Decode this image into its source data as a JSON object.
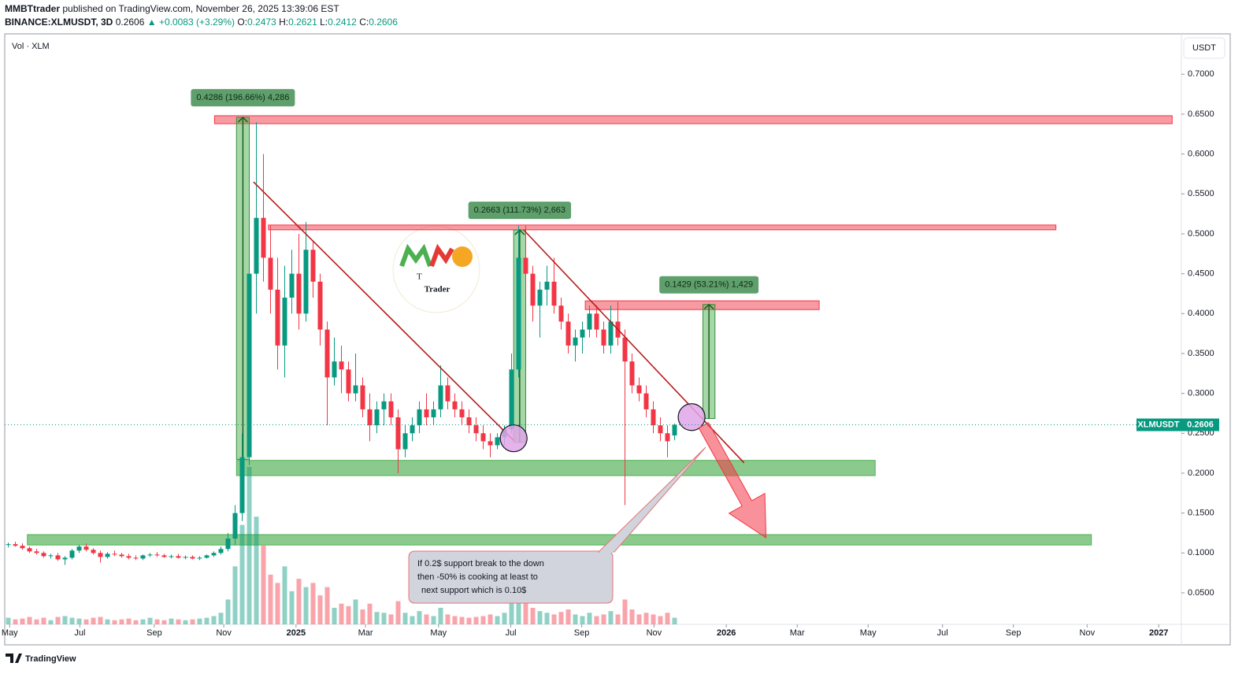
{
  "header": {
    "author": "MMBTtrader",
    "published": "published on TradingView.com, November 26, 2025 13:39:06 EST",
    "symbol": "BINANCE:XLMUSDT, 3D",
    "change": "▲ +0.0083 (+3.29%)",
    "ohlc_labels": [
      "O:",
      "H:",
      "L:",
      "C:"
    ],
    "volume_label": "Vol · XLM",
    "currency": "USDT",
    "ticker": "XLMUSDT",
    "brand": "TradingView"
  },
  "chart_data": {
    "type": "candlestick",
    "up_color": "#089981",
    "down_color": "#f23645",
    "grid": false,
    "categories": [
      null,
      null,
      null,
      null,
      null,
      null,
      null,
      null,
      null,
      null,
      null,
      null,
      null,
      null,
      null,
      null,
      null,
      null,
      null,
      null,
      null,
      null,
      null,
      null,
      null,
      null,
      null,
      null,
      null,
      null,
      null,
      null,
      null,
      null,
      null,
      null,
      null,
      null,
      null,
      null,
      null,
      null,
      null,
      null,
      null,
      null,
      null,
      null,
      null,
      null,
      null,
      null,
      null,
      null,
      null,
      null,
      null,
      null,
      null,
      null,
      null,
      null,
      null,
      null,
      null,
      null,
      null,
      null,
      null,
      null,
      null,
      null,
      null,
      null,
      null,
      null,
      null,
      null,
      null,
      null,
      null,
      null,
      null,
      null,
      null,
      null,
      null,
      null,
      null,
      null,
      null,
      null,
      null,
      null,
      null
    ],
    "open": [
      0.11,
      0.111,
      0.109,
      0.106,
      0.102,
      0.1,
      0.096,
      0.097,
      0.092,
      0.094,
      0.103,
      0.108,
      0.104,
      0.1,
      0.095,
      0.099,
      0.098,
      0.096,
      0.094,
      0.093,
      0.097,
      0.098,
      0.097,
      0.095,
      0.096,
      0.094,
      0.095,
      0.093,
      0.094,
      0.097,
      0.1,
      0.105,
      0.118,
      0.15,
      0.22,
      0.45,
      0.52,
      0.47,
      0.43,
      0.36,
      0.42,
      0.45,
      0.4,
      0.48,
      0.44,
      0.38,
      0.32,
      0.34,
      0.33,
      0.3,
      0.31,
      0.28,
      0.26,
      0.28,
      0.29,
      0.27,
      0.23,
      0.25,
      0.26,
      0.28,
      0.27,
      0.28,
      0.31,
      0.29,
      0.28,
      0.27,
      0.26,
      0.25,
      0.24,
      0.235,
      0.245,
      0.255,
      0.33,
      0.47,
      0.45,
      0.41,
      0.43,
      0.44,
      0.41,
      0.39,
      0.36,
      0.37,
      0.38,
      0.4,
      0.38,
      0.36,
      0.39,
      0.37,
      0.34,
      0.31,
      0.3,
      0.28,
      0.26,
      0.25,
      0.2473
    ],
    "high": [
      0.113,
      0.114,
      0.112,
      0.108,
      0.105,
      0.102,
      0.099,
      0.1,
      0.096,
      0.105,
      0.11,
      0.112,
      0.106,
      0.103,
      0.101,
      0.103,
      0.1,
      0.099,
      0.097,
      0.098,
      0.1,
      0.101,
      0.099,
      0.098,
      0.099,
      0.097,
      0.097,
      0.096,
      0.098,
      0.102,
      0.108,
      0.125,
      0.16,
      0.25,
      0.46,
      0.64,
      0.6,
      0.51,
      0.47,
      0.46,
      0.48,
      0.5,
      0.515,
      0.49,
      0.45,
      0.39,
      0.37,
      0.36,
      0.34,
      0.35,
      0.32,
      0.3,
      0.29,
      0.3,
      0.3,
      0.28,
      0.26,
      0.27,
      0.29,
      0.3,
      0.29,
      0.335,
      0.32,
      0.3,
      0.29,
      0.28,
      0.27,
      0.26,
      0.25,
      0.25,
      0.26,
      0.35,
      0.51,
      0.51,
      0.46,
      0.44,
      0.46,
      0.47,
      0.42,
      0.4,
      0.38,
      0.39,
      0.41,
      0.41,
      0.39,
      0.41,
      0.415,
      0.38,
      0.35,
      0.32,
      0.31,
      0.29,
      0.27,
      0.26,
      0.2621
    ],
    "low": [
      0.107,
      0.108,
      0.104,
      0.1,
      0.098,
      0.094,
      0.093,
      0.09,
      0.085,
      0.092,
      0.1,
      0.102,
      0.098,
      0.088,
      0.093,
      0.096,
      0.094,
      0.092,
      0.091,
      0.091,
      0.095,
      0.095,
      0.094,
      0.093,
      0.093,
      0.092,
      0.092,
      0.091,
      0.093,
      0.095,
      0.098,
      0.102,
      0.11,
      0.14,
      0.21,
      0.4,
      0.44,
      0.4,
      0.33,
      0.32,
      0.4,
      0.38,
      0.39,
      0.42,
      0.36,
      0.26,
      0.31,
      0.3,
      0.29,
      0.29,
      0.27,
      0.24,
      0.25,
      0.26,
      0.26,
      0.2,
      0.22,
      0.24,
      0.25,
      0.26,
      0.26,
      0.27,
      0.28,
      0.27,
      0.26,
      0.25,
      0.24,
      0.23,
      0.22,
      0.23,
      0.235,
      0.25,
      0.32,
      0.42,
      0.39,
      0.37,
      0.41,
      0.4,
      0.38,
      0.35,
      0.34,
      0.35,
      0.37,
      0.37,
      0.35,
      0.35,
      0.36,
      0.16,
      0.3,
      0.29,
      0.27,
      0.25,
      0.24,
      0.22,
      0.2412
    ],
    "close": [
      0.111,
      0.109,
      0.106,
      0.102,
      0.1,
      0.096,
      0.097,
      0.092,
      0.094,
      0.103,
      0.108,
      0.104,
      0.1,
      0.095,
      0.099,
      0.098,
      0.096,
      0.094,
      0.093,
      0.097,
      0.098,
      0.097,
      0.095,
      0.096,
      0.094,
      0.095,
      0.093,
      0.094,
      0.097,
      0.1,
      0.105,
      0.118,
      0.15,
      0.22,
      0.45,
      0.52,
      0.47,
      0.43,
      0.36,
      0.42,
      0.45,
      0.4,
      0.48,
      0.44,
      0.38,
      0.32,
      0.34,
      0.33,
      0.3,
      0.31,
      0.28,
      0.26,
      0.28,
      0.29,
      0.27,
      0.23,
      0.25,
      0.26,
      0.28,
      0.27,
      0.28,
      0.31,
      0.29,
      0.28,
      0.27,
      0.26,
      0.25,
      0.24,
      0.235,
      0.245,
      0.255,
      0.33,
      0.47,
      0.45,
      0.41,
      0.43,
      0.44,
      0.41,
      0.39,
      0.36,
      0.37,
      0.38,
      0.4,
      0.38,
      0.36,
      0.39,
      0.37,
      0.34,
      0.31,
      0.3,
      0.28,
      0.26,
      0.25,
      0.24,
      0.2606
    ],
    "volume": [
      8,
      6,
      7,
      9,
      6,
      8,
      5,
      9,
      10,
      8,
      7,
      6,
      8,
      9,
      6,
      5,
      6,
      7,
      5,
      6,
      8,
      6,
      5,
      7,
      6,
      5,
      6,
      7,
      8,
      10,
      14,
      30,
      70,
      120,
      190,
      130,
      95,
      60,
      50,
      70,
      40,
      55,
      45,
      50,
      35,
      45,
      20,
      25,
      22,
      30,
      18,
      25,
      15,
      14,
      12,
      28,
      14,
      10,
      16,
      12,
      10,
      20,
      12,
      10,
      9,
      8,
      9,
      10,
      12,
      10,
      14,
      40,
      60,
      30,
      20,
      16,
      14,
      12,
      15,
      18,
      12,
      10,
      14,
      10,
      12,
      16,
      12,
      30,
      18,
      12,
      14,
      12,
      10,
      14,
      8
    ],
    "xlim": [
      -0.5,
      165.5
    ],
    "xticks": [
      {
        "value": 0.2,
        "label": "May"
      },
      {
        "value": 10.1,
        "label": "Jul"
      },
      {
        "value": 20.6,
        "label": "Sep"
      },
      {
        "value": 30.4,
        "label": "Nov"
      },
      {
        "value": 40.6,
        "label": "2025"
      },
      {
        "value": 50.4,
        "label": "Mar"
      },
      {
        "value": 60.7,
        "label": "May"
      },
      {
        "value": 70.9,
        "label": "Jul"
      },
      {
        "value": 80.9,
        "label": "Sep"
      },
      {
        "value": 91.1,
        "label": "Nov"
      },
      {
        "value": 101.3,
        "label": "2026"
      },
      {
        "value": 111.3,
        "label": "Mar"
      },
      {
        "value": 121.3,
        "label": "May"
      },
      {
        "value": 131.8,
        "label": "Jul"
      },
      {
        "value": 141.8,
        "label": "Sep"
      },
      {
        "value": 152.2,
        "label": "Nov"
      },
      {
        "value": 162.3,
        "label": "2027"
      }
    ],
    "ylim": [
      0.0105,
      0.7496
    ],
    "yticks": [
      {
        "value": 0.05,
        "label": "0.0500"
      },
      {
        "value": 0.1,
        "label": "0.1000"
      },
      {
        "value": 0.15,
        "label": "0.1500"
      },
      {
        "value": 0.2,
        "label": "0.2000"
      },
      {
        "value": 0.25,
        "label": "0.2500"
      },
      {
        "value": 0.3,
        "label": "0.3000"
      },
      {
        "value": 0.35,
        "label": "0.3500"
      },
      {
        "value": 0.4,
        "label": "0.4000"
      },
      {
        "value": 0.45,
        "label": "0.4500"
      },
      {
        "value": 0.5,
        "label": "0.5000"
      },
      {
        "value": 0.55,
        "label": "0.5500"
      },
      {
        "value": 0.6,
        "label": "0.6000"
      },
      {
        "value": 0.65,
        "label": "0.6500"
      },
      {
        "value": 0.7,
        "label": "0.7000"
      }
    ],
    "zones": [
      {
        "color": "#f23645",
        "x": [
          29.1,
          164.2
        ],
        "y": [
          0.638,
          0.648
        ]
      },
      {
        "color": "#f23645",
        "x": [
          36.7,
          147.8
        ],
        "y": [
          0.505,
          0.511
        ]
      },
      {
        "color": "#f23645",
        "x": [
          81.4,
          114.4
        ],
        "y": [
          0.405,
          0.416
        ]
      },
      {
        "color": "#4caf50",
        "x": [
          32.2,
          122.3
        ],
        "y": [
          0.197,
          0.216
        ]
      },
      {
        "color": "#4caf50",
        "x": [
          2.7,
          152.8
        ],
        "y": [
          0.11,
          0.123
        ]
      }
    ],
    "measures": [
      {
        "label": "0.4286 (196.66%) 4,286",
        "x": [
          32.2,
          34.0
        ],
        "from": 0.2173,
        "to": 0.6459
      },
      {
        "label": "0.2663 (111.73%) 2,663",
        "x": [
          71.3,
          73.0
        ],
        "from": 0.2385,
        "to": 0.5048
      },
      {
        "label": "0.1429 (53.21%) 1,429",
        "x": [
          98.0,
          99.7
        ],
        "from": 0.2685,
        "to": 0.4114
      }
    ],
    "trendlines": [
      {
        "color": "#b71c1c",
        "x": [
          34.6,
          71.3
        ],
        "y": [
          0.565,
          0.241
        ]
      },
      {
        "color": "#b71c1c",
        "x": [
          72.7,
          103.8
        ],
        "y": [
          0.505,
          0.213
        ]
      }
    ],
    "markers": [
      {
        "x": 71.3,
        "y": 0.2437
      },
      {
        "x": 96.4,
        "y": 0.2703
      }
    ],
    "arrow": {
      "color": "#f23645",
      "x": [
        98.1,
        106.9
      ],
      "y": [
        0.26,
        0.119
      ]
    },
    "note": {
      "lines": [
        "If 0.2$ support break to the down",
        "then -50% is cooking at least to",
        "next support which is 0.10$"
      ]
    },
    "logo": "Trader"
  }
}
